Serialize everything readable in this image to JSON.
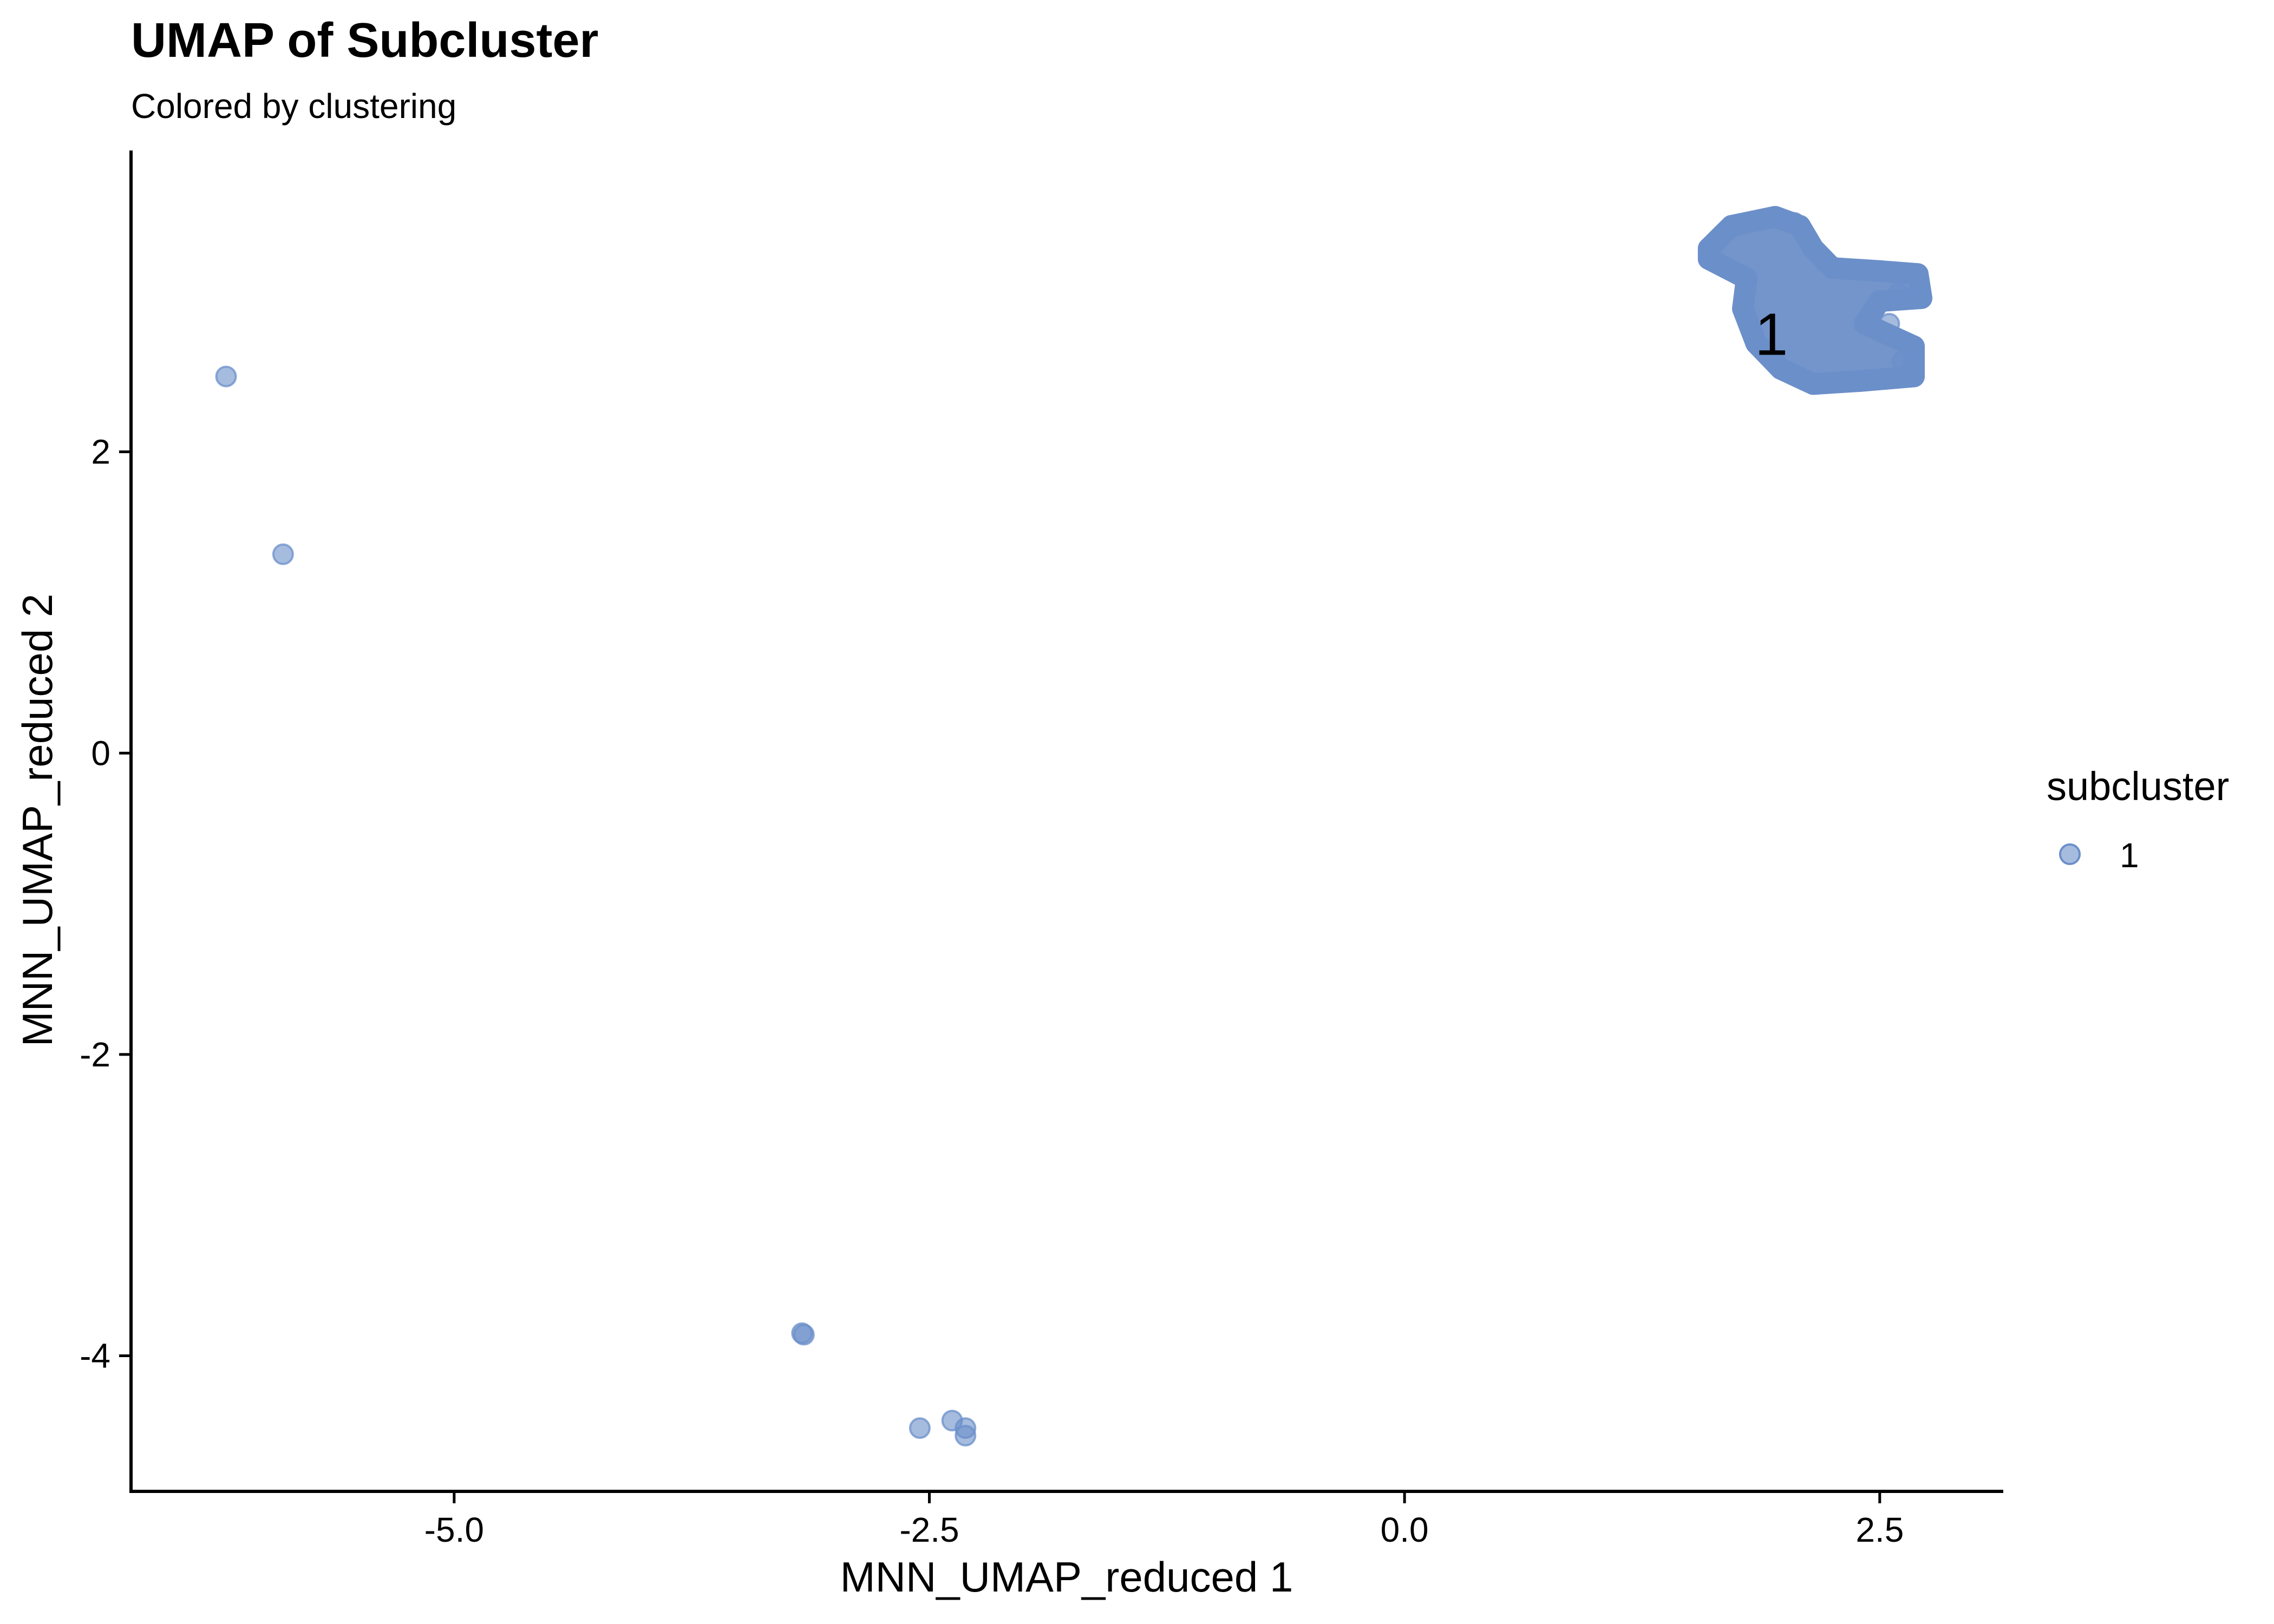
{
  "chart_data": {
    "type": "scatter",
    "title": "UMAP of Subcluster",
    "subtitle": "Colored by clustering",
    "xlabel": "MNN_UMAP_reduced 1",
    "ylabel": "MNN_UMAP_reduced 2",
    "xlim": [
      -6.7,
      3.15
    ],
    "ylim": [
      -4.9,
      4.0
    ],
    "x_ticks": [
      -5.0,
      -2.5,
      0.0,
      2.5
    ],
    "x_tick_labels": [
      "-5.0",
      "-2.5",
      "0.0",
      "2.5"
    ],
    "y_ticks": [
      -4,
      -2,
      0,
      2
    ],
    "y_tick_labels": [
      "-4",
      "-2",
      "0",
      "2"
    ],
    "grid": false,
    "legend": {
      "title": "subcluster",
      "position": "right",
      "entries": [
        "1"
      ]
    },
    "series": [
      {
        "name": "1",
        "color": "#6B8FC9",
        "opacity": 0.6,
        "points": [
          {
            "x": -6.2,
            "y": 2.5
          },
          {
            "x": -5.9,
            "y": 1.32
          },
          {
            "x": -3.17,
            "y": -3.85
          },
          {
            "x": -3.16,
            "y": -3.86
          },
          {
            "x": -2.55,
            "y": -4.48
          },
          {
            "x": -2.38,
            "y": -4.43
          },
          {
            "x": -2.31,
            "y": -4.48
          },
          {
            "x": -2.31,
            "y": -4.53
          }
        ],
        "dense_clusters": [
          {
            "outline": [
              [
                1.6,
                3.35
              ],
              [
                1.72,
                3.5
              ],
              [
                1.95,
                3.56
              ],
              [
                2.08,
                3.5
              ],
              [
                2.15,
                3.35
              ],
              [
                2.25,
                3.22
              ],
              [
                2.5,
                3.2
              ],
              [
                2.7,
                3.18
              ],
              [
                2.72,
                3.02
              ],
              [
                2.5,
                3.0
              ],
              [
                2.42,
                2.85
              ],
              [
                2.68,
                2.7
              ],
              [
                2.68,
                2.5
              ],
              [
                2.4,
                2.47
              ],
              [
                2.15,
                2.45
              ],
              [
                1.98,
                2.55
              ],
              [
                1.85,
                2.72
              ],
              [
                1.78,
                2.95
              ],
              [
                1.8,
                3.15
              ],
              [
                1.6,
                3.28
              ]
            ],
            "extra_points": [
              [
                2.55,
                2.85
              ],
              [
                2.6,
                3.05
              ],
              [
                2.05,
                3.52
              ],
              [
                1.6,
                3.33
              ],
              [
                2.62,
                2.6
              ]
            ]
          }
        ]
      }
    ],
    "cluster_labels": [
      {
        "text": "1",
        "x": 1.93,
        "y": 2.78
      }
    ]
  }
}
